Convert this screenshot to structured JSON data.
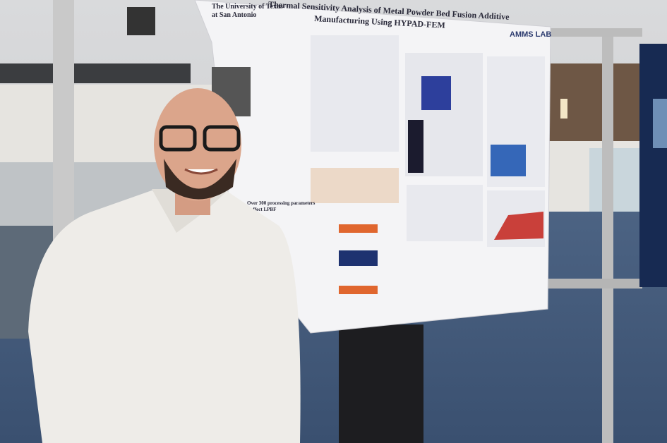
{
  "poster": {
    "institution": [
      "The University of Texas",
      "at San Antonio"
    ],
    "title": [
      "Thermal Sensitivity Analysis of Metal Powder Bed Fusion Additive",
      "Manufacturing Using HYPAD-FEM"
    ],
    "lab": "AMMS LAB",
    "note": [
      "Over 300 processing parameters",
      "affect LPBF"
    ]
  }
}
